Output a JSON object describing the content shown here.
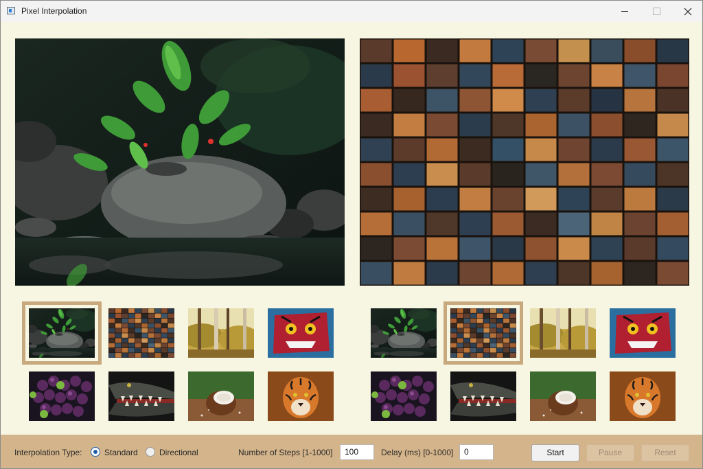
{
  "window": {
    "title": "Pixel Interpolation",
    "icon": "app-window-icon",
    "controls": [
      "minimize-icon",
      "maximize-icon",
      "close-icon"
    ]
  },
  "images": [
    "rocks-plant",
    "wood-blocks",
    "forest",
    "graffiti-face",
    "grapes",
    "crocodile",
    "coconut",
    "tiger"
  ],
  "left_panel": {
    "preview": "rocks-plant",
    "selected_index": 0
  },
  "right_panel": {
    "preview": "wood-blocks",
    "selected_index": 1
  },
  "controls": {
    "interpolation_label": "Interpolation Type:",
    "standard_label": "Standard",
    "directional_label": "Directional",
    "selected_type": "Standard",
    "steps_label": "Number of Steps [1-1000]",
    "steps_value": "100",
    "delay_label": "Delay (ms) [0-1000]",
    "delay_value": "0",
    "start_label": "Start",
    "pause_label": "Pause",
    "reset_label": "Reset"
  },
  "colors": {
    "background": "#f7f6e3",
    "bottom_bar": "#d4b48a",
    "selection_border": "#c8a97e",
    "radio_accent": "#1b5ea8"
  }
}
